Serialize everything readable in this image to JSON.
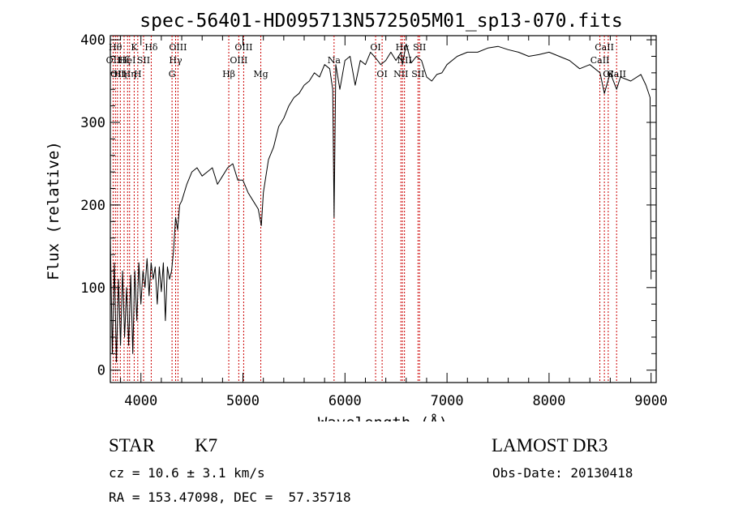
{
  "chart_data": {
    "type": "line",
    "title": "spec-56401-HD095713N572505M01_sp13-070.fits",
    "xlabel": "Wavelength (Å)",
    "ylabel": "Flux (relative)",
    "xlim": [
      3700,
      9050
    ],
    "ylim": [
      -15,
      405
    ],
    "xticks": [
      4000,
      5000,
      6000,
      7000,
      8000,
      9000
    ],
    "yticks": [
      0,
      100,
      200,
      300,
      400
    ],
    "grid": false,
    "line_color": "#000000",
    "marker_color": "#cc0000",
    "series": [
      {
        "x": [
          3700,
          3720,
          3740,
          3760,
          3780,
          3800,
          3820,
          3840,
          3860,
          3880,
          3900,
          3920,
          3940,
          3960,
          3980,
          4000,
          4020,
          4040,
          4060,
          4080,
          4100,
          4120,
          4140,
          4160,
          4180,
          4200,
          4220,
          4240,
          4260,
          4280,
          4300,
          4320,
          4340,
          4360,
          4380,
          4400,
          4450,
          4500,
          4550,
          4600,
          4650,
          4700,
          4750,
          4800,
          4850,
          4900,
          4950,
          5000,
          5050,
          5100,
          5150,
          5180,
          5200,
          5250,
          5300,
          5350,
          5400,
          5450,
          5500,
          5550,
          5600,
          5650,
          5700,
          5750,
          5800,
          5850,
          5880,
          5893,
          5910,
          5950,
          6000,
          6050,
          6100,
          6150,
          6200,
          6250,
          6300,
          6350,
          6400,
          6450,
          6500,
          6550,
          6563,
          6600,
          6650,
          6700,
          6750,
          6800,
          6850,
          6900,
          6950,
          7000,
          7100,
          7200,
          7300,
          7400,
          7500,
          7600,
          7700,
          7800,
          7900,
          8000,
          8100,
          8200,
          8300,
          8400,
          8500,
          8542,
          8600,
          8662,
          8700,
          8800,
          8900,
          8950,
          8990,
          9000
        ],
        "y": [
          160,
          20,
          130,
          10,
          110,
          30,
          120,
          40,
          100,
          30,
          115,
          20,
          120,
          60,
          130,
          80,
          120,
          100,
          135,
          90,
          130,
          110,
          125,
          80,
          125,
          95,
          130,
          60,
          125,
          110,
          120,
          145,
          185,
          170,
          200,
          205,
          225,
          240,
          245,
          235,
          240,
          245,
          225,
          235,
          245,
          250,
          230,
          230,
          215,
          205,
          195,
          175,
          215,
          255,
          270,
          295,
          305,
          320,
          330,
          335,
          345,
          350,
          360,
          355,
          370,
          365,
          340,
          185,
          370,
          340,
          375,
          380,
          345,
          375,
          370,
          385,
          378,
          370,
          375,
          385,
          375,
          385,
          370,
          395,
          372,
          380,
          375,
          355,
          350,
          358,
          360,
          370,
          380,
          385,
          385,
          390,
          392,
          388,
          385,
          380,
          382,
          385,
          380,
          375,
          365,
          370,
          360,
          335,
          360,
          340,
          355,
          350,
          358,
          345,
          330,
          110
        ]
      }
    ],
    "lines": [
      {
        "wavelength": 3728,
        "label": "OII",
        "row": 2
      },
      {
        "wavelength": 3750,
        "label": "Hθ",
        "row": 1
      },
      {
        "wavelength": 3770,
        "label": "OII",
        "row": 3
      },
      {
        "wavelength": 3798,
        "label": "Hη",
        "row": 3
      },
      {
        "wavelength": 3835,
        "label": "Hζ",
        "row": 2
      },
      {
        "wavelength": 3869,
        "label": "HeI",
        "row": 2
      },
      {
        "wavelength": 3889,
        "label": "Hη",
        "row": 3
      },
      {
        "wavelength": 3934,
        "label": "K",
        "row": 1
      },
      {
        "wavelength": 3969,
        "label": "H",
        "row": 3
      },
      {
        "wavelength": 4026,
        "label": "SII",
        "row": 2
      },
      {
        "wavelength": 4101,
        "label": "Hδ",
        "row": 1
      },
      {
        "wavelength": 4305,
        "label": "G",
        "row": 3
      },
      {
        "wavelength": 4340,
        "label": "Hγ",
        "row": 2
      },
      {
        "wavelength": 4363,
        "label": "OIII",
        "row": 1
      },
      {
        "wavelength": 4861,
        "label": "Hβ",
        "row": 3
      },
      {
        "wavelength": 4959,
        "label": "OIII",
        "row": 2
      },
      {
        "wavelength": 5007,
        "label": "OIII",
        "row": 1
      },
      {
        "wavelength": 5175,
        "label": "Mg",
        "row": 3
      },
      {
        "wavelength": 5893,
        "label": "Na",
        "row": 2
      },
      {
        "wavelength": 6300,
        "label": "OI",
        "row": 1
      },
      {
        "wavelength": 6364,
        "label": "OI",
        "row": 3
      },
      {
        "wavelength": 6548,
        "label": "NII",
        "row": 3
      },
      {
        "wavelength": 6563,
        "label": "Hα",
        "row": 1
      },
      {
        "wavelength": 6583,
        "label": "NII",
        "row": 2
      },
      {
        "wavelength": 6716,
        "label": "SII",
        "row": 3
      },
      {
        "wavelength": 6731,
        "label": "SII",
        "row": 1
      },
      {
        "wavelength": 8498,
        "label": "CaII",
        "row": 2
      },
      {
        "wavelength": 8542,
        "label": "CaII",
        "row": 1
      },
      {
        "wavelength": 8580,
        "label": "OI",
        "row": 3
      },
      {
        "wavelength": 8662,
        "label": "CaII",
        "row": 3
      }
    ]
  },
  "info": {
    "class_label": "STAR",
    "subclass": "K7",
    "survey": "LAMOST DR3",
    "cz": "cz = 10.6 ± 3.1 km/s",
    "obs_date": "Obs-Date: 20130418",
    "coords": "RA = 153.47098, DEC =  57.35718"
  }
}
